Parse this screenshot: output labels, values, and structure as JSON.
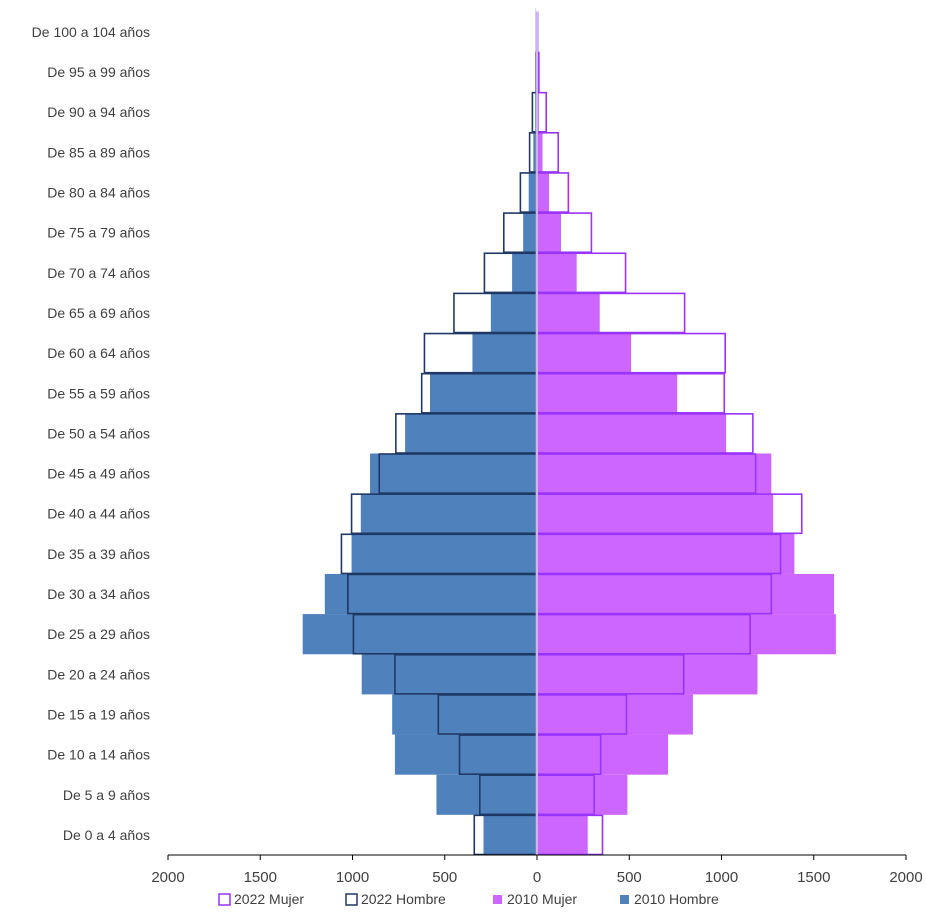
{
  "chart_data": {
    "type": "bar",
    "orientation": "horizontal",
    "layout": "population-pyramid",
    "categories": [
      "De 0 a 4 años",
      "De  5 a 9 años",
      "De 10 a 14 años",
      "De 15 a 19 años",
      "De 20 a 24 años",
      "De 25 a 29 años",
      "De 30 a 34 años",
      "De 35 a 39 años",
      "De 40 a 44 años",
      "De 45 a 49 años",
      "De 50 a 54 años",
      "De 55 a 59 años",
      "De 60 a 64 años",
      "De 65 a 69 años",
      "De 70 a 74 años",
      "De 75 a 79 años",
      "De 80 a 84 años",
      "De 85 a 89 años",
      "De 90 a 94 años",
      "De 95 a 99 años",
      "De 100 a 104 años"
    ],
    "series": [
      {
        "name": "2010 Hombre",
        "side": "left",
        "style": "filled",
        "color": "#4f81bd",
        "values": [
          290,
          545,
          770,
          785,
          950,
          1270,
          1150,
          1005,
          955,
          905,
          715,
          580,
          350,
          250,
          135,
          75,
          45,
          20,
          10,
          3,
          1
        ]
      },
      {
        "name": "2010 Mujer",
        "side": "right",
        "style": "filled",
        "color": "#cc66ff",
        "values": [
          275,
          490,
          710,
          845,
          1195,
          1620,
          1610,
          1395,
          1280,
          1270,
          1025,
          760,
          510,
          340,
          215,
          130,
          65,
          30,
          10,
          3,
          1
        ]
      },
      {
        "name": "2022 Hombre",
        "side": "left",
        "style": "outline",
        "color": "#1f3864",
        "values": [
          340,
          310,
          420,
          535,
          770,
          995,
          1025,
          1060,
          1005,
          855,
          765,
          625,
          610,
          450,
          285,
          180,
          90,
          40,
          25,
          5,
          2
        ]
      },
      {
        "name": "2022 Mujer",
        "side": "right",
        "style": "outline",
        "color": "#9933ff",
        "values": [
          355,
          310,
          345,
          485,
          795,
          1155,
          1270,
          1320,
          1435,
          1185,
          1170,
          1015,
          1020,
          800,
          480,
          295,
          170,
          115,
          50,
          10,
          3
        ]
      }
    ],
    "xlim": [
      -2000,
      2000
    ],
    "xticks": [
      -2000,
      -1500,
      -1000,
      -500,
      0,
      500,
      1000,
      1500,
      2000
    ],
    "xtick_labels": [
      "2000",
      "1500",
      "1000",
      "500",
      "0",
      "500",
      "1000",
      "1500",
      "2000"
    ],
    "legend": {
      "position": "bottom",
      "entries": [
        "2022 Mujer",
        "2022 Hombre",
        "2010 Mujer",
        "2010 Hombre"
      ]
    },
    "title": "",
    "xlabel": "",
    "ylabel": "",
    "grid": false
  }
}
